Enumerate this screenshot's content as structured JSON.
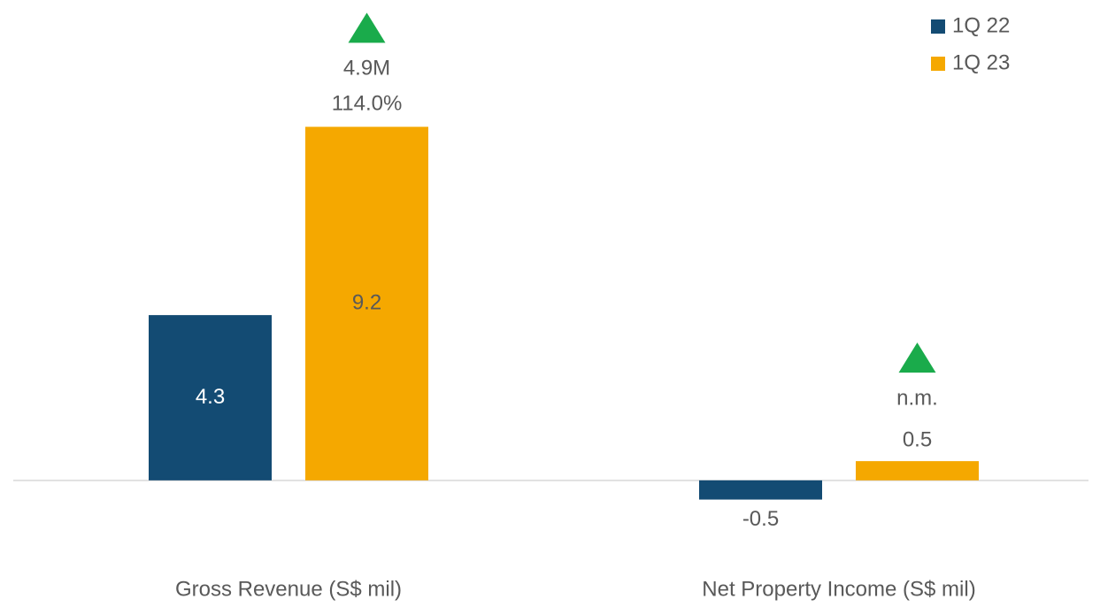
{
  "chart_data": {
    "type": "bar",
    "categories": [
      "Gross Revenue (S$ mil)",
      "Net Property Income (S$ mil)"
    ],
    "series": [
      {
        "name": "1Q 22",
        "color": "#134b73",
        "values": [
          4.3,
          -0.5
        ]
      },
      {
        "name": "1Q 23",
        "color": "#f5a800",
        "values": [
          9.2,
          0.5
        ]
      }
    ],
    "annotations": [
      {
        "lines": [
          "4.9M",
          "114.0%"
        ]
      },
      {
        "lines": [
          "n.m."
        ]
      }
    ],
    "ylim": [
      -1.5,
      12.5
    ],
    "legend": "top-right"
  }
}
